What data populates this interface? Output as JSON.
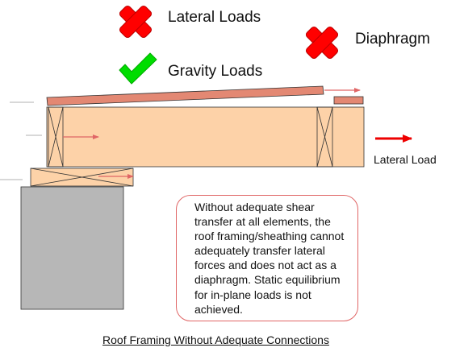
{
  "legend": {
    "lateral_loads": "Lateral Loads",
    "gravity_loads": "Gravity Loads",
    "diaphragm": "Diaphragm"
  },
  "lateral_load_label": "Lateral Load",
  "note": "Without adequate shear transfer at all elements, the roof framing/sheathing cannot adequately transfer lateral forces and does not act as a diaphragm. Static equilibrium for in-plane loads is not achieved.",
  "caption": "Roof Framing Without Adequate Connections",
  "colors": {
    "fail_mark": "#ff0000",
    "pass_mark": "#00dd00",
    "sheathing": "#e38873",
    "framing": "#fdd2a8",
    "wall": "#b7b7b7",
    "arrow": "#e06666",
    "lateral_arrow": "#ee0000",
    "note_border": "#e06666"
  },
  "icons": {
    "lateral_loads": "x-mark-icon",
    "gravity_loads": "check-mark-icon",
    "diaphragm": "x-mark-icon"
  }
}
